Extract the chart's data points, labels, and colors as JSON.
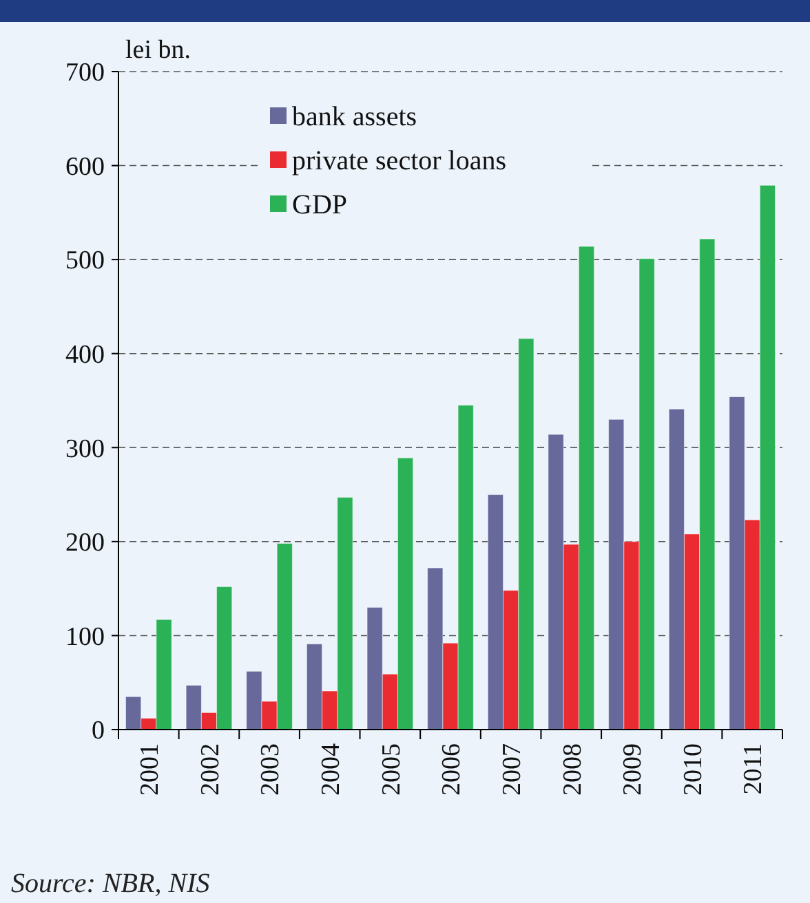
{
  "chart_data": {
    "type": "bar",
    "ylabel": "lei bn.",
    "categories": [
      "2001",
      "2002",
      "2003",
      "2004",
      "2005",
      "2006",
      "2007",
      "2008",
      "2009",
      "2010",
      "2011"
    ],
    "series": [
      {
        "name": "bank assets",
        "color": "#67699b",
        "values": [
          35,
          47,
          62,
          91,
          130,
          172,
          250,
          314,
          330,
          341,
          354
        ]
      },
      {
        "name": "private sector loans",
        "color": "#ea2b32",
        "values": [
          12,
          18,
          30,
          41,
          59,
          92,
          148,
          197,
          200,
          208,
          223
        ]
      },
      {
        "name": "GDP",
        "color": "#2bb256",
        "values": [
          117,
          152,
          198,
          247,
          289,
          345,
          416,
          514,
          501,
          522,
          579
        ]
      }
    ],
    "ylim": [
      0,
      700
    ],
    "yticks": [
      0,
      100,
      200,
      300,
      400,
      500,
      600,
      700
    ],
    "grid": "y",
    "legend": "top left",
    "annotations": [
      "Source: NBR, NIS"
    ]
  }
}
